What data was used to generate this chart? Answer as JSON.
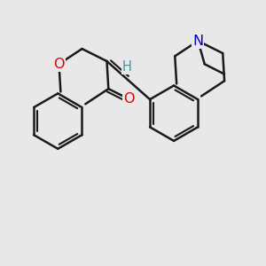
{
  "background_color": "#e8e8e8",
  "bond_color": "#1a1a1a",
  "lw": 1.8,
  "off": 0.12,
  "atom_colors": {
    "O": "#dd0000",
    "N": "#0000cc",
    "H": "#4a8fa0",
    "C": "#1a1a1a"
  },
  "fs": 11.5,
  "figsize": [
    3.0,
    3.0
  ],
  "dpi": 100,
  "xlim": [
    0,
    10
  ],
  "ylim": [
    0,
    10
  ]
}
